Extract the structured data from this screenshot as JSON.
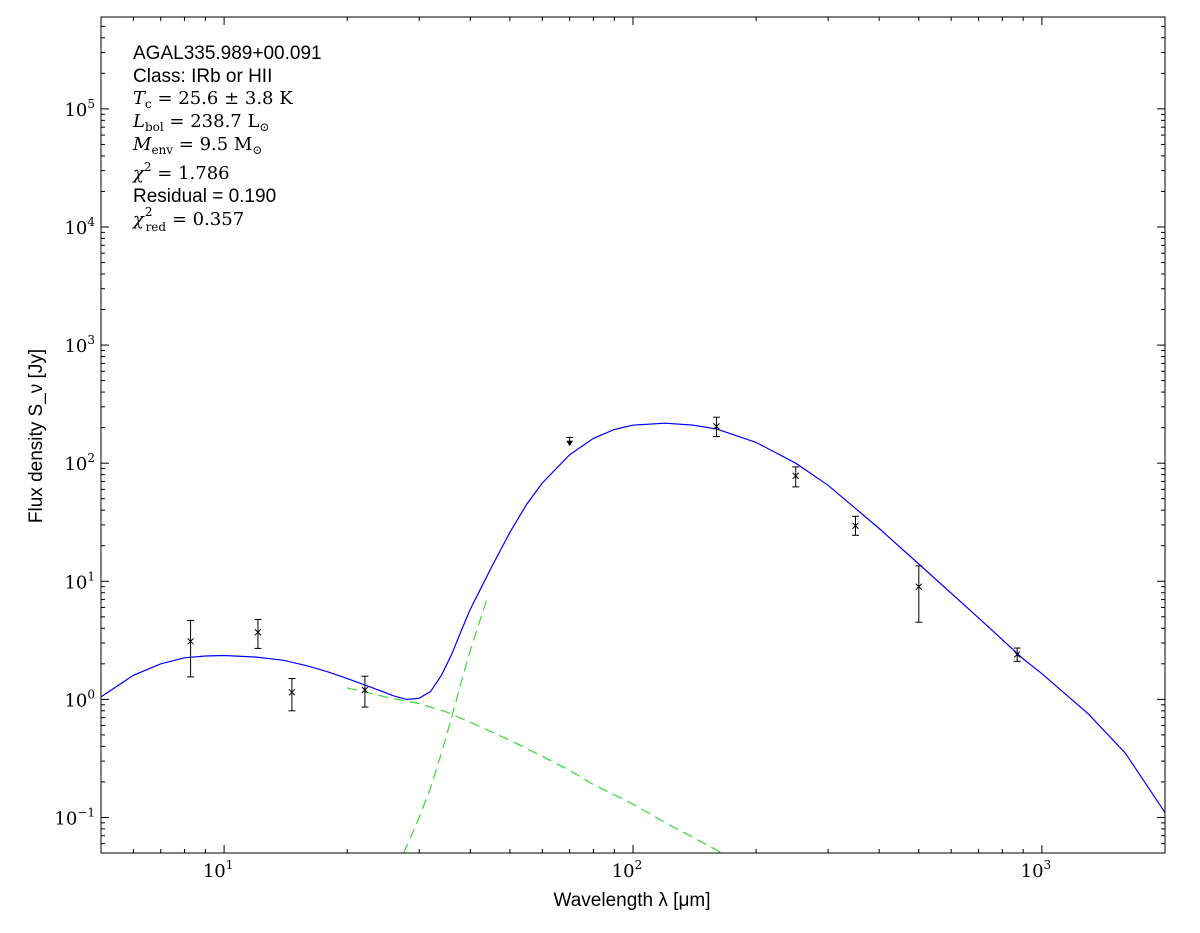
{
  "chart_data": {
    "type": "scatter",
    "xlabel": "Wavelength λ [μm]",
    "ylabel": "Flux density S_ν [Jy]",
    "xscale": "log",
    "yscale": "log",
    "xlim": [
      5,
      2000
    ],
    "ylim": [
      0.05,
      600000
    ],
    "x_ticks": [
      {
        "value": 10,
        "base": "10",
        "exp": "1"
      },
      {
        "value": 100,
        "base": "10",
        "exp": "2"
      },
      {
        "value": 1000,
        "base": "10",
        "exp": "3"
      }
    ],
    "y_ticks": [
      {
        "value": 0.1,
        "base": "10",
        "exp": "−1"
      },
      {
        "value": 1,
        "base": "10",
        "exp": "0"
      },
      {
        "value": 10,
        "base": "10",
        "exp": "1"
      },
      {
        "value": 100,
        "base": "10",
        "exp": "2"
      },
      {
        "value": 1000,
        "base": "10",
        "exp": "3"
      },
      {
        "value": 10000,
        "base": "10",
        "exp": "4"
      },
      {
        "value": 100000,
        "base": "10",
        "exp": "5"
      }
    ],
    "grid": false,
    "annotation": {
      "source": "AGAL335.989+00.091",
      "class_line": "Class: IRb or HII",
      "tc": {
        "sym": "T",
        "sub": "c",
        "rest": " = 25.6 ± 3.8 K"
      },
      "lbol": {
        "sym": "L",
        "sub": "bol",
        "rest": " = 238.7 L",
        "tail": "⊙"
      },
      "menv": {
        "sym": "M",
        "sub": "env",
        "rest": " = 9.5 M",
        "tail": "⊙"
      },
      "chi2": {
        "sym": "χ",
        "sup": "2",
        "rest": " = 1.786"
      },
      "residual": "Residual = 0.190",
      "chi2red": {
        "sym": "χ",
        "sup": "2",
        "sub": "red",
        "rest": " = 0.357"
      }
    },
    "measurements": [
      {
        "x": 8.28,
        "y": 3.1,
        "lo": 1.55,
        "hi": 4.65
      },
      {
        "x": 12.1,
        "y": 3.7,
        "lo": 2.7,
        "hi": 4.75
      },
      {
        "x": 14.65,
        "y": 1.15,
        "lo": 0.8,
        "hi": 1.5
      },
      {
        "x": 22.1,
        "y": 1.2,
        "lo": 0.86,
        "hi": 1.57
      },
      {
        "x": 160,
        "y": 205,
        "lo": 168,
        "hi": 245
      },
      {
        "x": 250,
        "y": 78,
        "lo": 63,
        "hi": 93
      },
      {
        "x": 350,
        "y": 29.5,
        "lo": 24.5,
        "hi": 35.5
      },
      {
        "x": 500,
        "y": 9,
        "lo": 4.5,
        "hi": 13.5
      },
      {
        "x": 870,
        "y": 2.4,
        "lo": 2.1,
        "hi": 2.72
      }
    ],
    "upper_limits": [
      {
        "x": 70,
        "y": 165,
        "arrow_to": 142
      }
    ],
    "series": [
      {
        "kind": "total-fit",
        "color": "#0000ff",
        "style": "solid",
        "x": [
          5,
          6,
          7,
          8,
          9,
          10,
          12,
          14,
          16,
          18,
          20,
          22,
          24,
          26,
          28,
          30,
          32,
          34,
          36,
          38,
          40,
          45,
          50,
          55,
          60,
          70,
          80,
          90,
          100,
          120,
          140,
          160,
          200,
          250,
          300,
          400,
          500,
          700,
          900,
          1000,
          1300,
          1600,
          2000
        ],
        "y": [
          1.05,
          1.6,
          2.0,
          2.25,
          2.33,
          2.35,
          2.28,
          2.14,
          1.92,
          1.7,
          1.5,
          1.33,
          1.19,
          1.07,
          1.0,
          1.02,
          1.17,
          1.6,
          2.4,
          3.8,
          5.8,
          13,
          26,
          45,
          68,
          118,
          162,
          193,
          210,
          218,
          210,
          195,
          150,
          100,
          65,
          28,
          14,
          4.9,
          2.2,
          1.65,
          0.75,
          0.35,
          0.11
        ]
      },
      {
        "kind": "warm-component",
        "color": "#33dd33",
        "style": "dashed",
        "x": [
          20,
          25,
          30,
          35,
          40,
          50,
          60,
          70,
          80,
          100,
          120,
          140,
          165
        ],
        "y": [
          1.25,
          1.04,
          0.92,
          0.78,
          0.64,
          0.45,
          0.33,
          0.25,
          0.19,
          0.13,
          0.09,
          0.068,
          0.05
        ]
      },
      {
        "kind": "cold-component",
        "color": "#33dd33",
        "style": "dashed",
        "x": [
          27.5,
          30,
          32,
          34,
          36,
          38,
          40,
          44
        ],
        "y": [
          0.05,
          0.1,
          0.18,
          0.35,
          0.7,
          1.4,
          2.6,
          7.2
        ]
      }
    ]
  }
}
